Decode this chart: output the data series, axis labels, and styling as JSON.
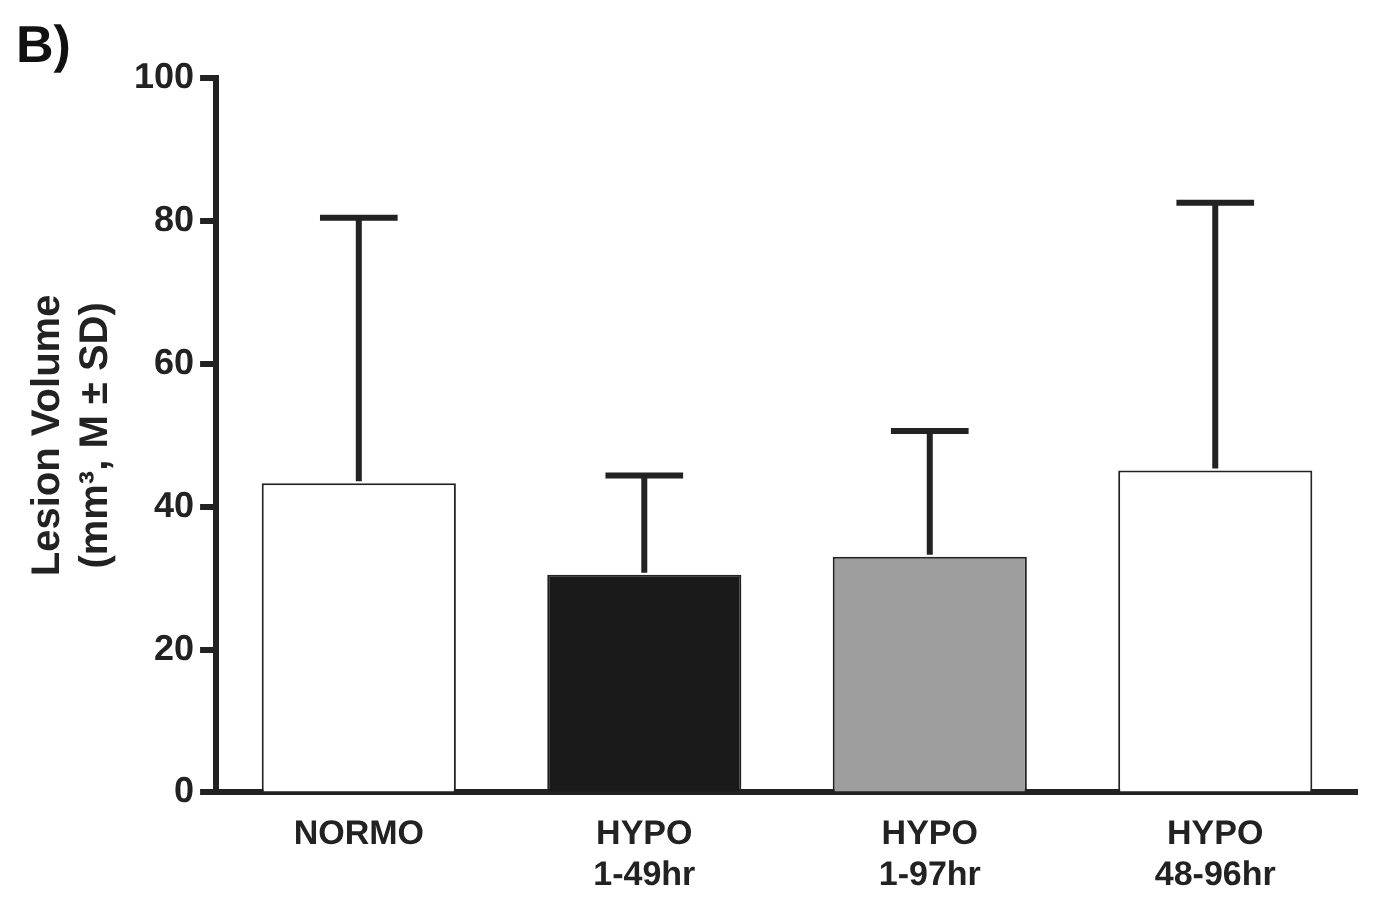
{
  "chart_data": {
    "type": "bar",
    "title": "B)",
    "ylabel": "Lesion Volume\n(mm³, M ± SD)",
    "categories": [
      "NORMO",
      "HYPO\n1-49hr",
      "HYPO\n1-97hr",
      "HYPO\n48-96hr"
    ],
    "values": [
      43.3,
      30.5,
      33,
      45.1
    ],
    "errors": [
      [
        43.3,
        80.5
      ],
      [
        30.5,
        44.4
      ],
      [
        33,
        50.6
      ],
      [
        45.1,
        82.6
      ]
    ],
    "colors": [
      "#ffffff",
      "#1a1a1a",
      "#9e9e9e",
      "#ffffff"
    ],
    "ylim": [
      0,
      100
    ],
    "yticks": [
      0,
      20,
      40,
      60,
      80,
      100
    ],
    "grid": false,
    "legend": false
  }
}
